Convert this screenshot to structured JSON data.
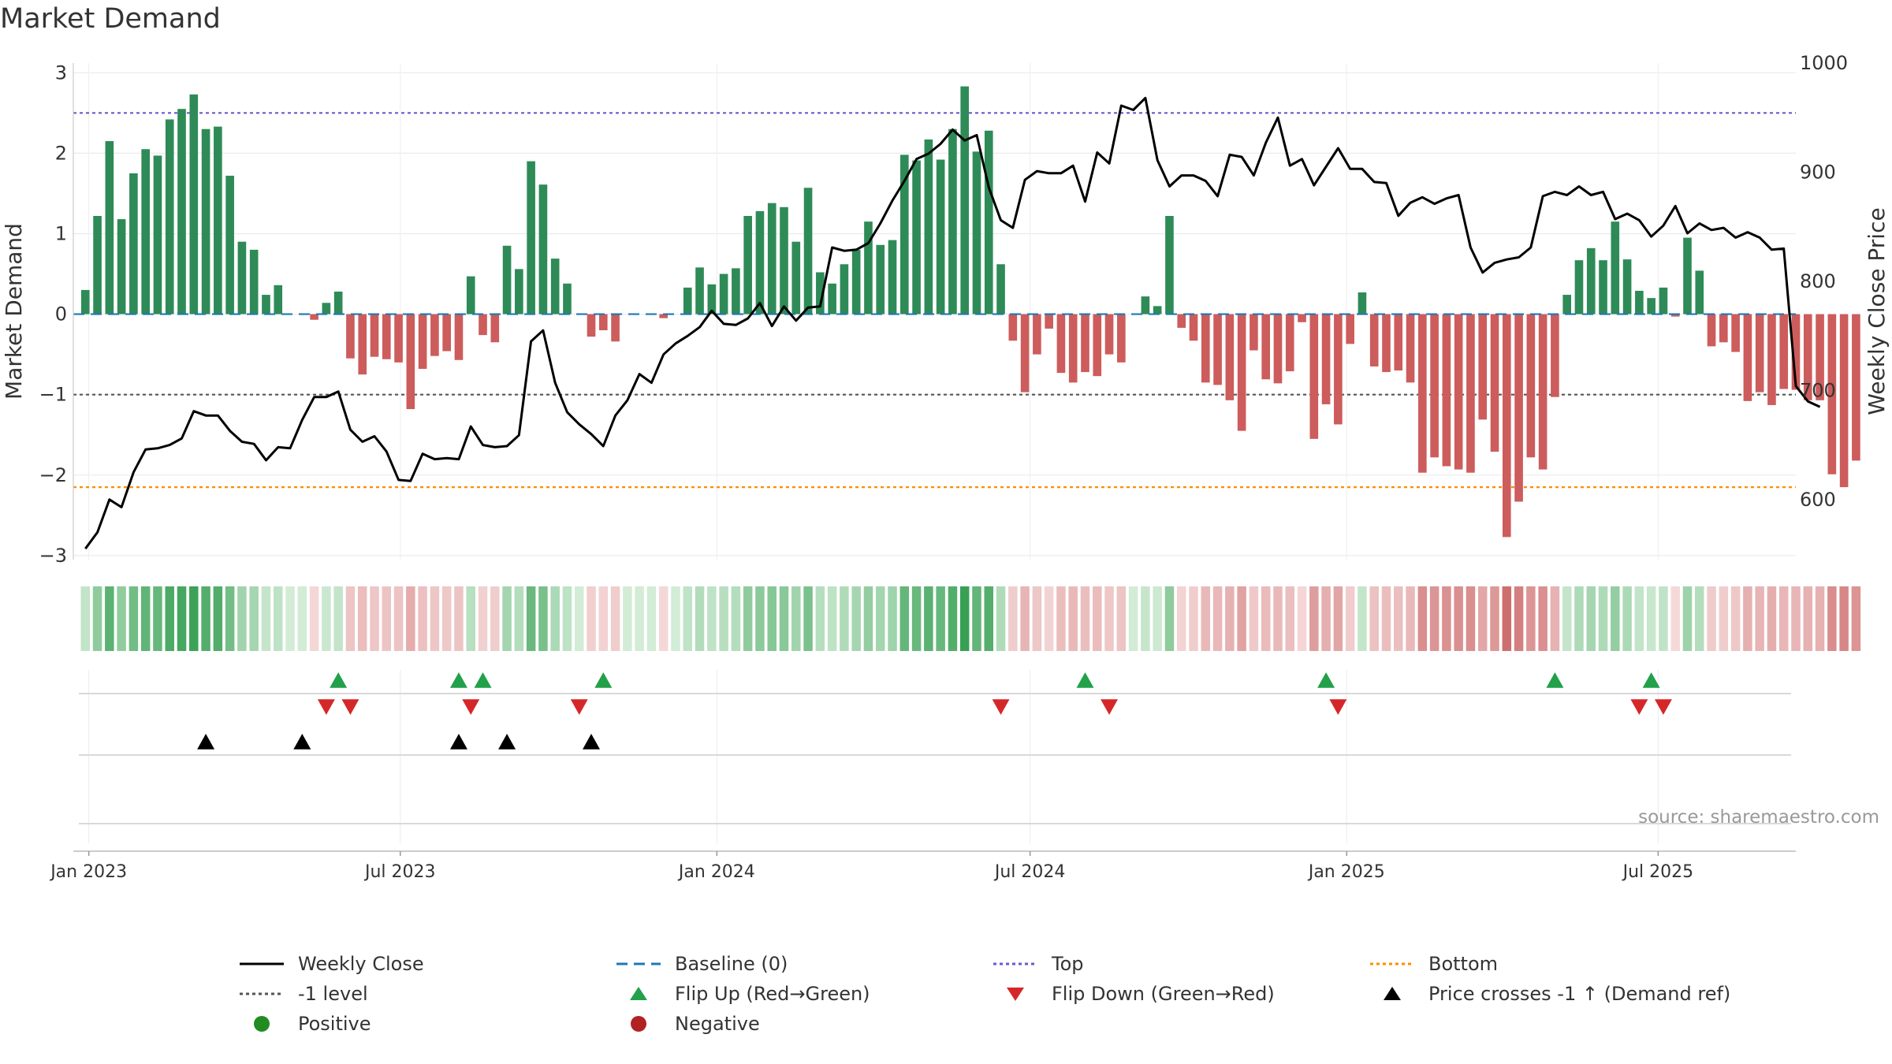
{
  "title": "Market Demand",
  "source_note": "source: sharemaestro.com",
  "colors": {
    "positive_bar": "#2e8b57",
    "negative_bar": "#cd5c5c",
    "price_line": "#000000",
    "baseline": "#1f77b4",
    "top": "#6a5acd",
    "bottom": "#ff8c00",
    "minus_one": "#555555",
    "flip_up": "#22a04a",
    "flip_down": "#d62728",
    "cross": "#000000",
    "legend_positive": "#228b22",
    "legend_negative": "#b22222"
  },
  "legend": [
    {
      "key": "weekly_close",
      "label": "Weekly Close",
      "marker": "line-solid"
    },
    {
      "key": "baseline",
      "label": "Baseline (0)",
      "marker": "line-dashed"
    },
    {
      "key": "top",
      "label": "Top",
      "marker": "line-dotted"
    },
    {
      "key": "bottom",
      "label": "Bottom",
      "marker": "line-dotted"
    },
    {
      "key": "minus_one",
      "label": "-1 level",
      "marker": "line-dotted"
    },
    {
      "key": "flip_up",
      "label": "Flip Up (Red→Green)",
      "marker": "triangle-up"
    },
    {
      "key": "flip_down",
      "label": "Flip Down (Green→Red)",
      "marker": "triangle-down"
    },
    {
      "key": "cross",
      "label": "Price crosses -1 ↑ (Demand ref)",
      "marker": "triangle-up"
    },
    {
      "key": "positive",
      "label": "Positive",
      "marker": "circle"
    },
    {
      "key": "negative",
      "label": "Negative",
      "marker": "circle"
    }
  ],
  "chart_data": {
    "type": "bar+line",
    "title": "Market Demand",
    "ylabel": "Market Demand",
    "y2label": "Weekly Close Price",
    "ylim": [
      -3.05,
      3.12
    ],
    "y2lim": [
      545,
      1000
    ],
    "yticks": [
      3,
      2,
      1,
      0,
      -1,
      -2,
      -3
    ],
    "ytick_labels": [
      "3",
      "2",
      "1",
      "0",
      "−1",
      "−2",
      "−3"
    ],
    "y2ticks": [
      1000,
      900,
      800,
      700,
      600
    ],
    "y2tick_labels": [
      "1000",
      "900",
      "800",
      "700",
      "600"
    ],
    "x_start": "2022-12-23",
    "x_end": "2025-09-19",
    "xticks": [
      {
        "date": "2023-01-01",
        "label": "Jan 2023"
      },
      {
        "date": "2023-07-01",
        "label": "Jul 2023"
      },
      {
        "date": "2024-01-01",
        "label": "Jan 2024"
      },
      {
        "date": "2024-07-01",
        "label": "Jul 2024"
      },
      {
        "date": "2025-01-01",
        "label": "Jan 2025"
      },
      {
        "date": "2025-07-01",
        "label": "Jul 2025"
      }
    ],
    "first_week": "2022-12-30",
    "reference_levels": {
      "top": 2.5,
      "bottom": -2.15,
      "minus_one": -1.0,
      "baseline": 0
    },
    "demand": [
      0.3,
      1.22,
      2.15,
      1.18,
      1.75,
      2.05,
      1.97,
      2.42,
      2.55,
      2.73,
      2.3,
      2.33,
      1.72,
      0.9,
      0.8,
      0.24,
      0.36,
      0,
      0,
      -0.07,
      0.14,
      0.28,
      -0.55,
      -0.75,
      -0.53,
      -0.56,
      -0.6,
      -1.18,
      -0.68,
      -0.52,
      -0.46,
      -0.57,
      0.47,
      -0.26,
      -0.35,
      0.85,
      0.56,
      1.9,
      1.61,
      0.69,
      0.38,
      0,
      -0.28,
      -0.2,
      -0.34,
      0,
      0,
      0,
      -0.05,
      0,
      0.33,
      0.58,
      0.37,
      0.5,
      0.57,
      1.22,
      1.28,
      1.38,
      1.33,
      0.9,
      1.57,
      0.52,
      0.38,
      0.62,
      0.8,
      1.15,
      0.86,
      0.92,
      1.98,
      1.91,
      2.17,
      1.92,
      2.3,
      2.83,
      2.02,
      2.28,
      0.62,
      -0.33,
      -0.97,
      -0.5,
      -0.18,
      -0.73,
      -0.85,
      -0.72,
      -0.77,
      -0.5,
      -0.6,
      0,
      0.22,
      0.1,
      1.22,
      -0.17,
      -0.33,
      -0.85,
      -0.88,
      -1.07,
      -1.45,
      -0.45,
      -0.81,
      -0.86,
      -0.71,
      -0.1,
      -1.55,
      -1.12,
      -1.37,
      -0.37,
      0.27,
      -0.65,
      -0.72,
      -0.7,
      -0.85,
      -1.97,
      -1.78,
      -1.89,
      -1.93,
      -1.97,
      -1.31,
      -1.71,
      -2.77,
      -2.33,
      -1.78,
      -1.93,
      -1.03,
      0.24,
      0.67,
      0.82,
      0.67,
      1.15,
      0.68,
      0.29,
      0.2,
      0.33,
      -0.03,
      0.95,
      0.54,
      -0.4,
      -0.35,
      -0.47,
      -1.08,
      -0.97,
      -1.13,
      -0.93,
      -0.94,
      -1.07,
      -1.07,
      -1.99,
      -2.15,
      -1.82
    ],
    "price": [
      555,
      570,
      600,
      593,
      625,
      646,
      647,
      650,
      656,
      681,
      677,
      677,
      663,
      653,
      651,
      636,
      648,
      647,
      673,
      694,
      694,
      699,
      664,
      653,
      658,
      644,
      618,
      617,
      642,
      637,
      638,
      637,
      667,
      650,
      648,
      649,
      659,
      745,
      755,
      707,
      680,
      669,
      660,
      649,
      677,
      691,
      715,
      707,
      733,
      743,
      750,
      758,
      773,
      761,
      760,
      766,
      780,
      759,
      777,
      764,
      776,
      777,
      831,
      828,
      829,
      835,
      853,
      874,
      892,
      912,
      917,
      926,
      939,
      929,
      934,
      886,
      856,
      849,
      893,
      901,
      899,
      899,
      906,
      873,
      918,
      908,
      961,
      957,
      968,
      911,
      887,
      897,
      897,
      892,
      878,
      916,
      914,
      897,
      927,
      950,
      906,
      912,
      888,
      905,
      922,
      903,
      903,
      891,
      890,
      860,
      872,
      877,
      871,
      876,
      879,
      831,
      808,
      817,
      820,
      822,
      831,
      878,
      882,
      879,
      887,
      879,
      882,
      857,
      862,
      856,
      841,
      851,
      869,
      844,
      853,
      847,
      849,
      840,
      845,
      840,
      829,
      830,
      704,
      690,
      685
    ],
    "color_strip_note": "Each week is shaded by its demand value: green intensity for positive, red intensity for negative",
    "flip_up_dates": [
      "2023-05-26",
      "2023-08-04",
      "2023-08-18",
      "2023-10-27",
      "2024-08-02",
      "2024-12-20",
      "2025-05-02",
      "2025-06-27"
    ],
    "flip_down_dates": [
      "2023-05-19",
      "2023-06-02",
      "2023-08-11",
      "2023-10-13",
      "2024-06-14",
      "2024-08-16",
      "2024-12-27",
      "2025-06-20",
      "2025-07-04"
    ],
    "cross_up_dates": [
      "2023-03-10",
      "2023-05-05",
      "2023-08-04",
      "2023-09-01",
      "2023-10-20"
    ]
  }
}
